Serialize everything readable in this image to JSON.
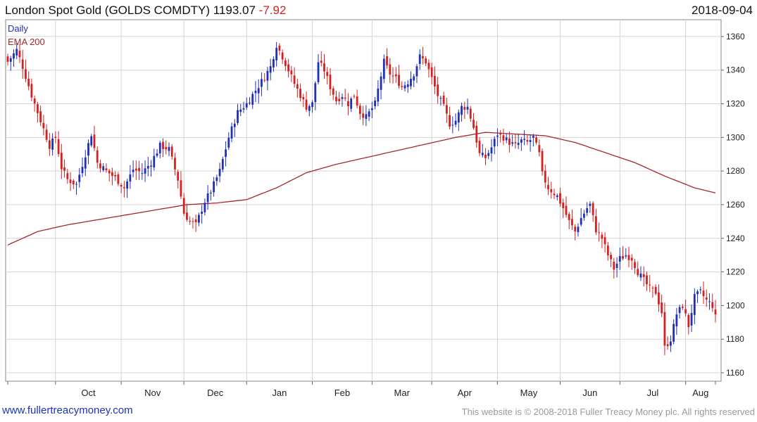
{
  "header": {
    "title": "London Spot Gold (GOLDS COMDTY) 1193.07",
    "change": "-7.92",
    "date": "2018-09-04"
  },
  "legend": {
    "daily": "Daily",
    "ema": "EMA 200"
  },
  "footer": {
    "site": "www.fullertreacymoney.com",
    "copyright": "This website is © 2008-2018 Fuller Treacy Money plc. All rights reserved"
  },
  "colors": {
    "up": "#1f2fb8",
    "down": "#d42020",
    "ema": "#a8262c",
    "grid": "#d4d4d4"
  },
  "chart_data": {
    "type": "candlestick",
    "period": "Daily",
    "ylim": [
      1155,
      1370
    ],
    "y_ticks": [
      1160,
      1180,
      1200,
      1220,
      1240,
      1260,
      1280,
      1300,
      1320,
      1340,
      1360
    ],
    "x_months": [
      "Oct",
      "Nov",
      "Dec",
      "Jan",
      "Feb",
      "Mar",
      "Apr",
      "May",
      "Jun",
      "Jul",
      "Aug"
    ],
    "close_anchors": [
      [
        0,
        1345
      ],
      [
        3,
        1352
      ],
      [
        5,
        1342
      ],
      [
        8,
        1325
      ],
      [
        12,
        1305
      ],
      [
        14,
        1295
      ],
      [
        16,
        1300
      ],
      [
        18,
        1282
      ],
      [
        20,
        1275
      ],
      [
        23,
        1272
      ],
      [
        26,
        1290
      ],
      [
        28,
        1302
      ],
      [
        30,
        1285
      ],
      [
        33,
        1280
      ],
      [
        36,
        1276
      ],
      [
        39,
        1270
      ],
      [
        42,
        1281
      ],
      [
        45,
        1279
      ],
      [
        48,
        1285
      ],
      [
        51,
        1295
      ],
      [
        54,
        1293
      ],
      [
        57,
        1275
      ],
      [
        59,
        1255
      ],
      [
        61,
        1250
      ],
      [
        63,
        1248
      ],
      [
        66,
        1262
      ],
      [
        68,
        1268
      ],
      [
        71,
        1280
      ],
      [
        74,
        1300
      ],
      [
        77,
        1315
      ],
      [
        80,
        1320
      ],
      [
        83,
        1328
      ],
      [
        86,
        1336
      ],
      [
        88,
        1342
      ],
      [
        90,
        1355
      ],
      [
        92,
        1348
      ],
      [
        94,
        1340
      ],
      [
        96,
        1332
      ],
      [
        98,
        1325
      ],
      [
        100,
        1318
      ],
      [
        102,
        1320
      ],
      [
        104,
        1345
      ],
      [
        106,
        1340
      ],
      [
        108,
        1330
      ],
      [
        110,
        1322
      ],
      [
        112,
        1325
      ],
      [
        114,
        1320
      ],
      [
        116,
        1325
      ],
      [
        118,
        1315
      ],
      [
        120,
        1312
      ],
      [
        123,
        1320
      ],
      [
        126,
        1345
      ],
      [
        128,
        1338
      ],
      [
        130,
        1335
      ],
      [
        132,
        1330
      ],
      [
        134,
        1333
      ],
      [
        136,
        1338
      ],
      [
        138,
        1348
      ],
      [
        140,
        1345
      ],
      [
        142,
        1335
      ],
      [
        144,
        1325
      ],
      [
        146,
        1318
      ],
      [
        148,
        1308
      ],
      [
        150,
        1310
      ],
      [
        152,
        1318
      ],
      [
        154,
        1318
      ],
      [
        156,
        1306
      ],
      [
        158,
        1290
      ],
      [
        160,
        1288
      ],
      [
        162,
        1294
      ],
      [
        164,
        1302
      ],
      [
        166,
        1300
      ],
      [
        168,
        1297
      ],
      [
        170,
        1295
      ],
      [
        172,
        1298
      ],
      [
        174,
        1297
      ],
      [
        176,
        1300
      ],
      [
        178,
        1290
      ],
      [
        179,
        1278
      ],
      [
        181,
        1270
      ],
      [
        184,
        1265
      ],
      [
        186,
        1258
      ],
      [
        188,
        1250
      ],
      [
        190,
        1244
      ],
      [
        192,
        1252
      ],
      [
        194,
        1258
      ],
      [
        195,
        1260
      ],
      [
        197,
        1245
      ],
      [
        199,
        1240
      ],
      [
        201,
        1230
      ],
      [
        203,
        1222
      ],
      [
        205,
        1228
      ],
      [
        207,
        1230
      ],
      [
        209,
        1228
      ],
      [
        211,
        1220
      ],
      [
        213,
        1215
      ],
      [
        215,
        1210
      ],
      [
        217,
        1208
      ],
      [
        219,
        1196
      ],
      [
        220,
        1175
      ],
      [
        222,
        1180
      ],
      [
        224,
        1195
      ],
      [
        226,
        1200
      ],
      [
        228,
        1188
      ],
      [
        230,
        1205
      ],
      [
        232,
        1208
      ],
      [
        234,
        1203
      ],
      [
        236,
        1200
      ],
      [
        237,
        1193.07
      ]
    ],
    "ema200": [
      [
        0,
        1236
      ],
      [
        10,
        1244
      ],
      [
        20,
        1248
      ],
      [
        30,
        1251
      ],
      [
        40,
        1254
      ],
      [
        50,
        1257
      ],
      [
        60,
        1260
      ],
      [
        70,
        1261
      ],
      [
        80,
        1263
      ],
      [
        90,
        1270
      ],
      [
        100,
        1279
      ],
      [
        110,
        1284
      ],
      [
        120,
        1288
      ],
      [
        130,
        1292
      ],
      [
        140,
        1296
      ],
      [
        150,
        1300
      ],
      [
        160,
        1303
      ],
      [
        170,
        1302
      ],
      [
        180,
        1301
      ],
      [
        190,
        1297
      ],
      [
        200,
        1291
      ],
      [
        210,
        1285
      ],
      [
        220,
        1277
      ],
      [
        230,
        1270
      ],
      [
        237,
        1267
      ]
    ],
    "last_close": 1193.07,
    "last_change": -7.92
  }
}
